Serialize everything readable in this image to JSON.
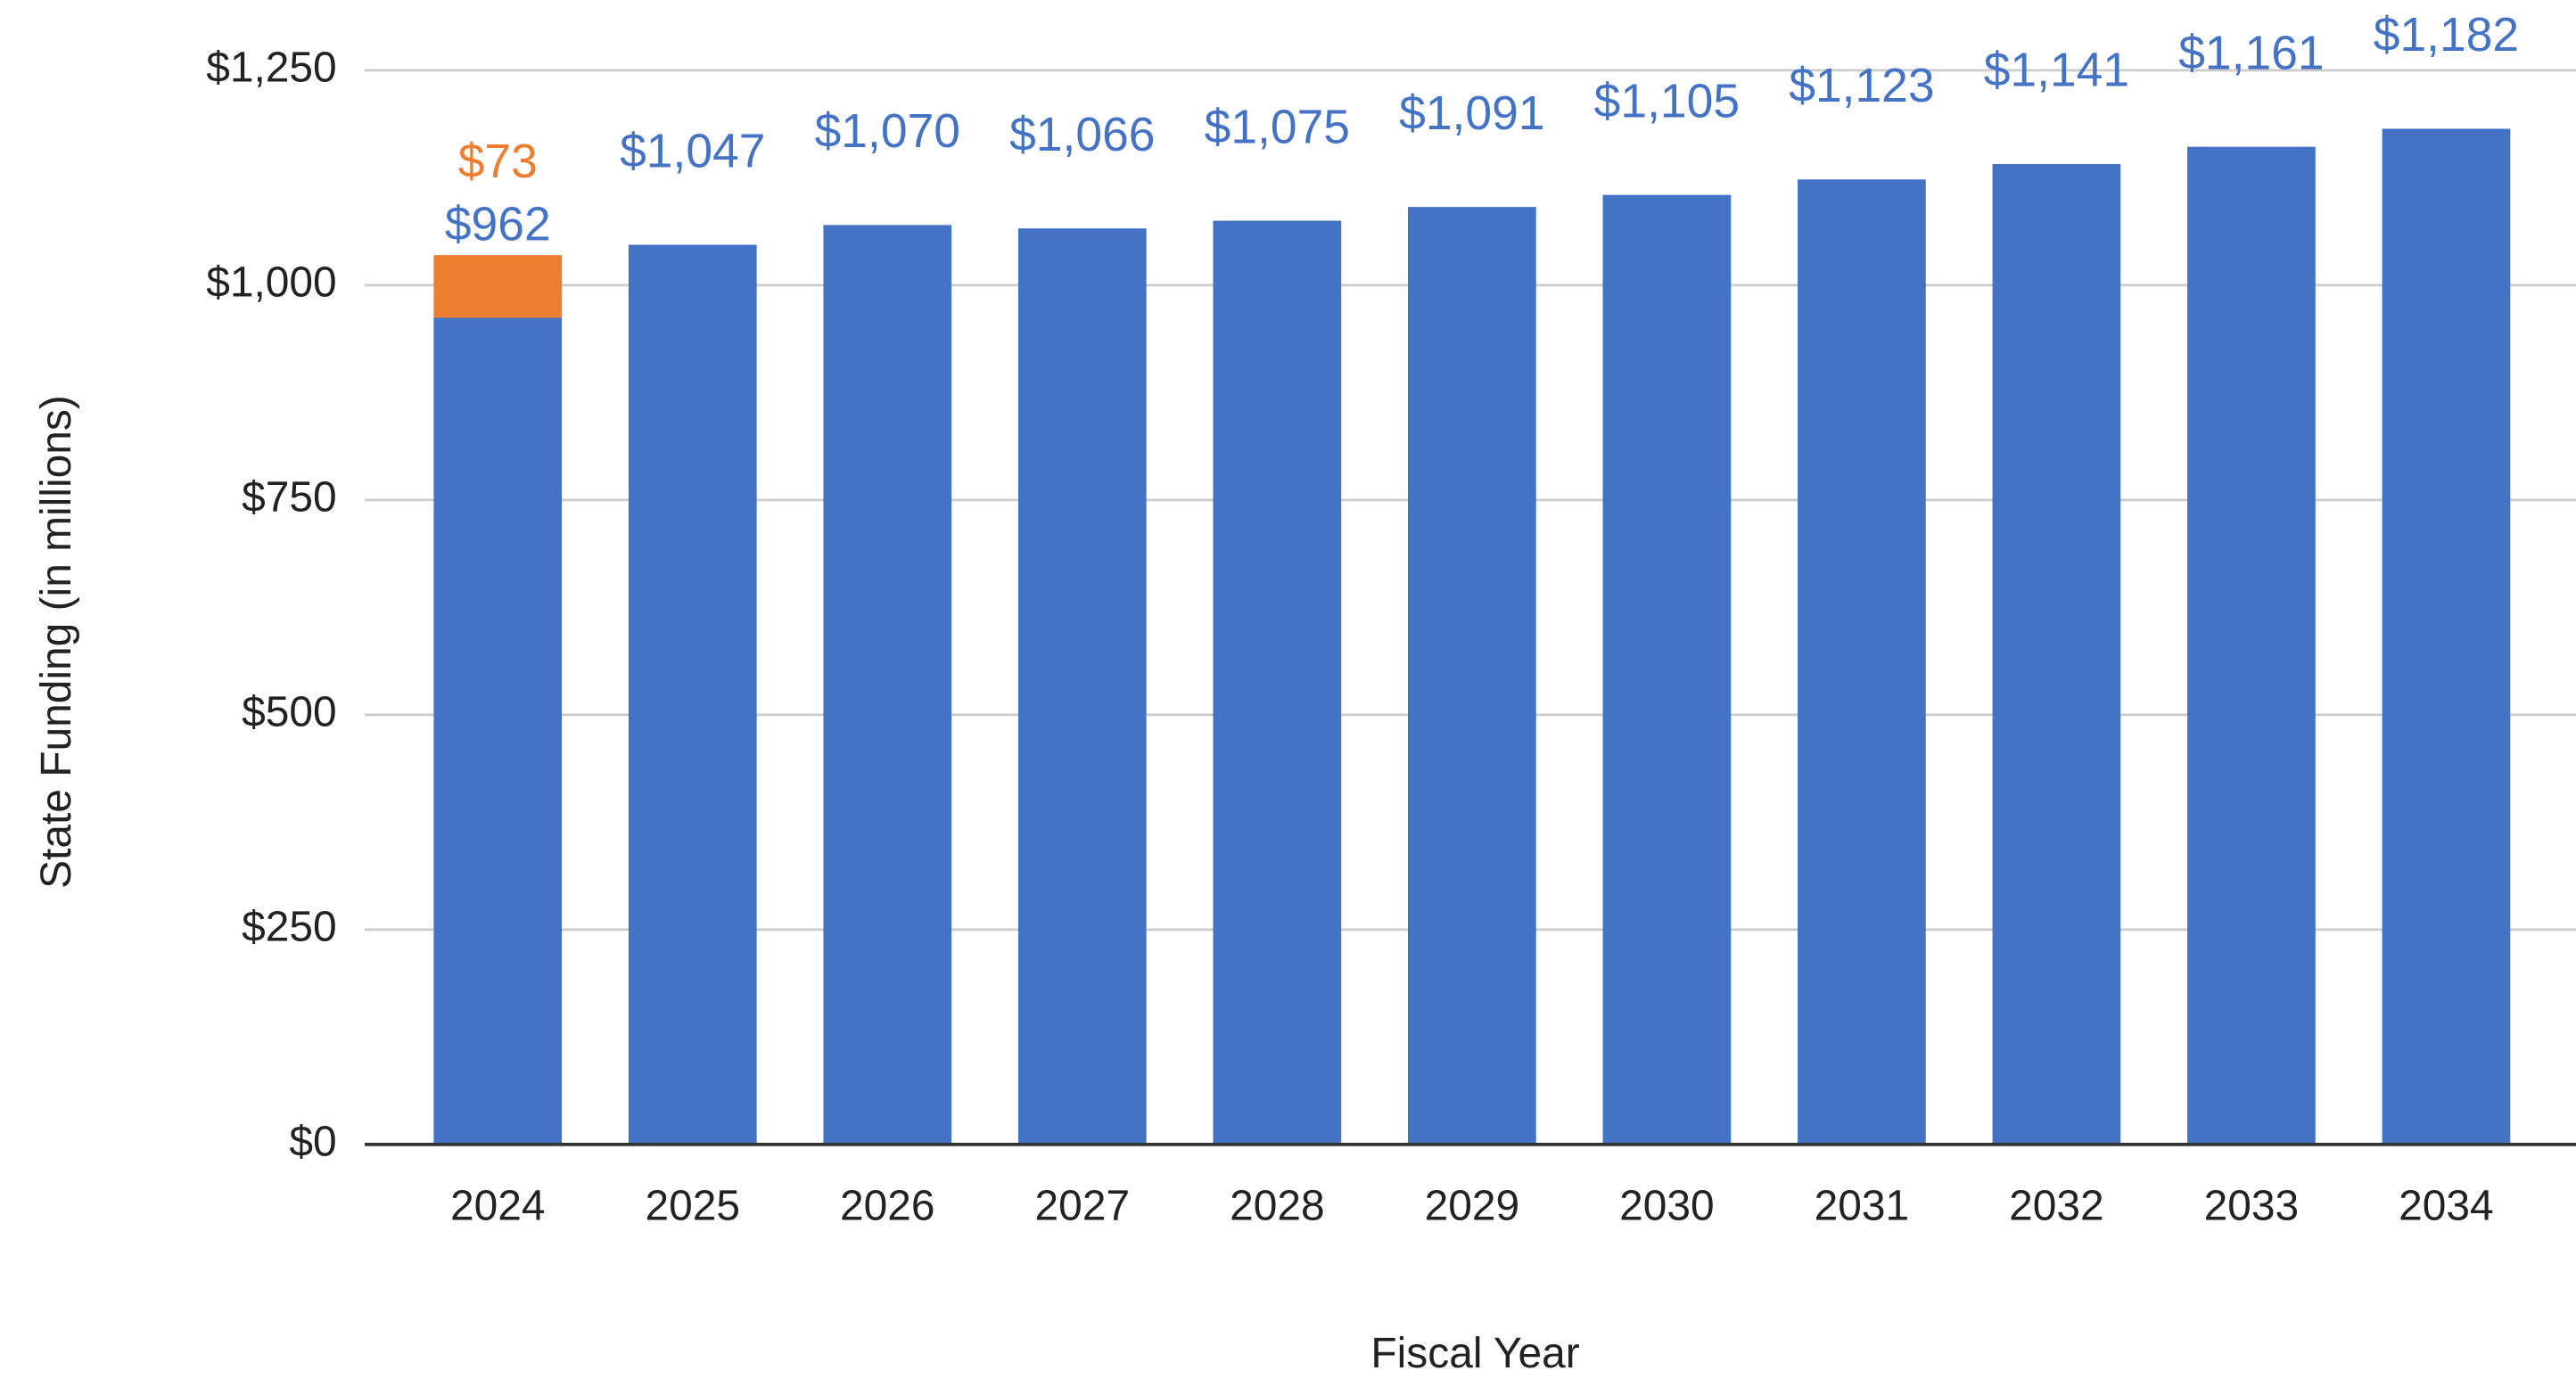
{
  "chart_data": {
    "type": "stacked_bar",
    "x_label": "Fiscal Year",
    "y_label": "State Funding (in millions)",
    "categories": [
      "2024",
      "2025",
      "2026",
      "2027",
      "2028",
      "2029",
      "2030",
      "2031",
      "2032",
      "2033",
      "2034"
    ],
    "series": [
      {
        "color": "#4472c4",
        "values": [
          962,
          1047,
          1070,
          1066,
          1075,
          1091,
          1105,
          1123,
          1141,
          1161,
          1182
        ],
        "value_labels": [
          "$962",
          "$1,047",
          "$1,070",
          "$1,066",
          "$1,075",
          "$1,091",
          "$1,105",
          "$1,123",
          "$1,141",
          "$1,161",
          "$1,182"
        ]
      },
      {
        "color": "#ed7d31",
        "values": [
          73,
          null,
          null,
          null,
          null,
          null,
          null,
          null,
          null,
          null,
          null
        ],
        "value_labels": [
          "$73",
          null,
          null,
          null,
          null,
          null,
          null,
          null,
          null,
          null,
          null
        ]
      }
    ],
    "ylim": [
      0,
      1250
    ],
    "yticks": [
      {
        "value": 0,
        "label": "$0"
      },
      {
        "value": 250,
        "label": "$250"
      },
      {
        "value": 500,
        "label": "$500"
      },
      {
        "value": 750,
        "label": "$750"
      },
      {
        "value": 1000,
        "label": "$1,000"
      },
      {
        "value": 1250,
        "label": "$1,250"
      }
    ],
    "grid": true
  }
}
